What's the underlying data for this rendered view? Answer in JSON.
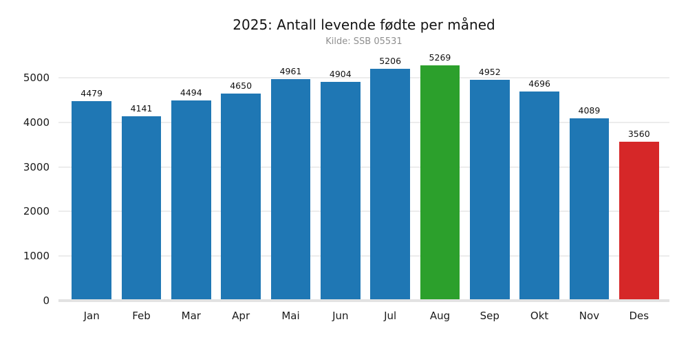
{
  "figure": {
    "background": "#ffffff"
  },
  "chart_data": {
    "type": "bar",
    "title": "2025: Antall levende fødte per måned",
    "subtitle": "Kilde: SSB 05531",
    "categories": [
      "Jan",
      "Feb",
      "Mar",
      "Apr",
      "Mai",
      "Jun",
      "Jul",
      "Aug",
      "Sep",
      "Okt",
      "Nov",
      "Des"
    ],
    "values": [
      4479,
      4141,
      4494,
      4650,
      4961,
      4904,
      5206,
      5269,
      4952,
      4696,
      4089,
      3560
    ],
    "bar_colors": [
      "#1f77b4",
      "#1f77b4",
      "#1f77b4",
      "#1f77b4",
      "#1f77b4",
      "#1f77b4",
      "#1f77b4",
      "#2ca02c",
      "#1f77b4",
      "#1f77b4",
      "#1f77b4",
      "#d62728"
    ],
    "value_labels_shown": true,
    "xlabel": "",
    "ylabel": "",
    "yticks": [
      0,
      1000,
      2000,
      3000,
      4000,
      5000
    ],
    "ylim": [
      0,
      5430
    ],
    "grid": "horizontal",
    "legend": "none",
    "colors": {
      "default_bar": "#1f77b4",
      "max_highlight_bar": "#2ca02c",
      "min_highlight_bar": "#d62728",
      "gridline": "#ececec",
      "baseline": "#e2e2e2",
      "title_text": "#141414",
      "subtitle_text": "#8f8f8f",
      "tick_text": "#1a1a1a",
      "value_label_text": "#111111"
    }
  }
}
